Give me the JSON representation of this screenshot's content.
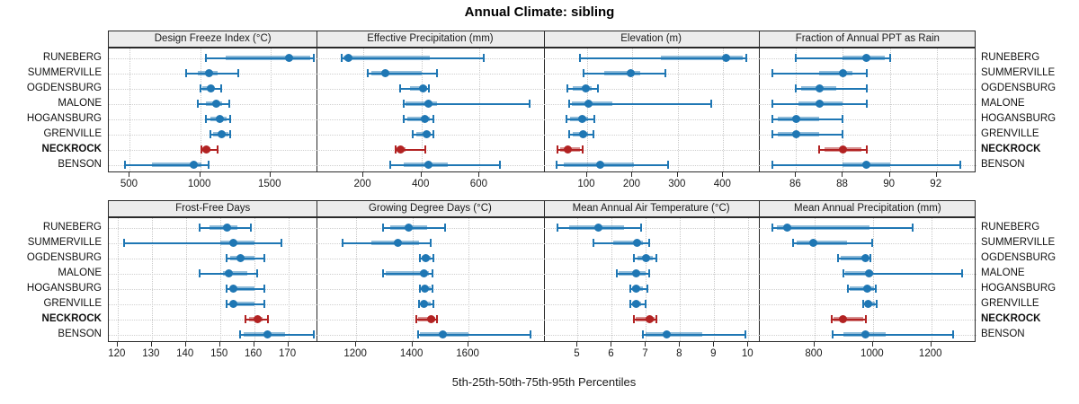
{
  "title": "Annual Climate: sibling",
  "xaxis_label": "5th-25th-50th-75th-95th Percentiles",
  "colors": {
    "series_blue": "#1f77b4",
    "highlight_red": "#b22222",
    "strip_bg": "#ececec",
    "gridline": "#c9c9c9",
    "border": "#2a2a2a"
  },
  "chart_data": {
    "type": "dotplot-trellis",
    "subtitle_percentiles": [
      "5th",
      "25th",
      "50th",
      "75th",
      "95th"
    ],
    "stations": [
      "RUNEBERG",
      "SUMMERVILLE",
      "OGDENSBURG",
      "MALONE",
      "HOGANSBURG",
      "GRENVILLE",
      "NECKROCK",
      "BENSON"
    ],
    "highlight_station": "NECKROCK",
    "legend_position": "none",
    "grid": "dotted",
    "panels": [
      {
        "title": "Design Freeze Index (°C)",
        "row": 0,
        "col": 0,
        "xlim": [
          350,
          1830
        ],
        "ticks": [
          500,
          1000,
          1500
        ],
        "values": {
          "RUNEBERG": [
            1040,
            1180,
            1630,
            1785,
            1808
          ],
          "SUMMERVILLE": [
            900,
            980,
            1062,
            1122,
            1270
          ],
          "OGDENSBURG": [
            1000,
            1016,
            1073,
            1092,
            1147
          ],
          "MALONE": [
            981,
            1041,
            1115,
            1157,
            1207
          ],
          "HOGANSBURG": [
            1041,
            1073,
            1143,
            1190,
            1211
          ],
          "GRENVILLE": [
            1073,
            1094,
            1154,
            1200,
            1215
          ],
          "NECKROCK": [
            1009,
            1016,
            1041,
            1073,
            1126
          ],
          "BENSON": [
            466,
            658,
            956,
            1009,
            1058
          ]
        }
      },
      {
        "title": "Effective Precipitation (mm)",
        "row": 0,
        "col": 1,
        "xlim": [
          40,
          820
        ],
        "ticks": [
          200,
          400,
          600
        ],
        "values": {
          "RUNEBERG": [
            124,
            132,
            150,
            428,
            615
          ],
          "SUMMERVILLE": [
            214,
            228,
            276,
            400,
            454
          ],
          "OGDENSBURG": [
            328,
            360,
            404,
            419,
            426
          ],
          "MALONE": [
            338,
            346,
            423,
            454,
            773
          ],
          "HOGANSBURG": [
            340,
            350,
            412,
            428,
            441
          ],
          "GRENVILLE": [
            371,
            381,
            418,
            433,
            441
          ],
          "NECKROCK": [
            311,
            315,
            328,
            345,
            412
          ],
          "BENSON": [
            292,
            340,
            425,
            490,
            670
          ]
        }
      },
      {
        "title": "Elevation (m)",
        "row": 0,
        "col": 2,
        "xlim": [
          4,
          478
        ],
        "ticks": [
          100,
          200,
          300,
          400
        ],
        "values": {
          "RUNEBERG": [
            85,
            263,
            407,
            443,
            451
          ],
          "SUMMERVILLE": [
            93,
            138,
            197,
            218,
            273
          ],
          "OGDENSBURG": [
            57,
            68,
            98,
            111,
            123
          ],
          "MALONE": [
            60,
            66,
            103,
            156,
            373
          ],
          "HOGANSBURG": [
            55,
            62,
            90,
            103,
            116
          ],
          "GRENVILLE": [
            60,
            68,
            91,
            103,
            114
          ],
          "NECKROCK": [
            35,
            40,
            57,
            85,
            91
          ],
          "BENSON": [
            32,
            48,
            128,
            204,
            278
          ]
        }
      },
      {
        "title": "Fraction of Annual PPT as Rain",
        "row": 0,
        "col": 3,
        "xlim": [
          84.4,
          93.7
        ],
        "ticks": [
          86,
          88,
          90,
          92
        ],
        "values": {
          "RUNEBERG": [
            86,
            88,
            89,
            89.8,
            90
          ],
          "SUMMERVILLE": [
            85,
            87,
            88,
            88.4,
            89
          ],
          "OGDENSBURG": [
            86,
            86.2,
            87,
            87.7,
            89
          ],
          "MALONE": [
            85,
            86.1,
            87,
            88,
            89
          ],
          "HOGANSBURG": [
            85,
            85.2,
            86,
            87,
            88
          ],
          "GRENVILLE": [
            85,
            85.2,
            86,
            87,
            88
          ],
          "NECKROCK": [
            87,
            87.2,
            88,
            88.8,
            89
          ],
          "BENSON": [
            85,
            88,
            89,
            90,
            93
          ]
        }
      },
      {
        "title": "Frost-Free Days",
        "row": 1,
        "col": 0,
        "xlim": [
          117.4,
          178.4
        ],
        "ticks": [
          120,
          130,
          140,
          150,
          160,
          170
        ],
        "values": {
          "RUNEBERG": [
            144,
            147,
            152,
            155,
            159
          ],
          "SUMMERVILLE": [
            122,
            150,
            154,
            160,
            168
          ],
          "OGDENSBURG": [
            152,
            153,
            156,
            160,
            163
          ],
          "MALONE": [
            144,
            151,
            152.5,
            158,
            161
          ],
          "HOGANSBURG": [
            152,
            153,
            154,
            160,
            163
          ],
          "GRENVILLE": [
            152,
            153,
            154,
            160,
            163
          ],
          "NECKROCK": [
            157.5,
            158.5,
            161,
            162.5,
            164
          ],
          "BENSON": [
            156,
            157,
            164,
            169,
            177.5
          ]
        }
      },
      {
        "title": "Growing Degree Days (°C)",
        "row": 1,
        "col": 1,
        "xlim": [
          1060,
          1867
        ],
        "ticks": [
          1200,
          1400,
          1600
        ],
        "values": {
          "RUNEBERG": [
            1295,
            1320,
            1388,
            1452,
            1516
          ],
          "SUMMERVILLE": [
            1150,
            1255,
            1348,
            1425,
            1466
          ],
          "OGDENSBURG": [
            1427,
            1434,
            1449,
            1465,
            1474
          ],
          "MALONE": [
            1297,
            1306,
            1441,
            1460,
            1471
          ],
          "HOGANSBURG": [
            1428,
            1434,
            1445,
            1465,
            1471
          ],
          "GRENVILLE": [
            1425,
            1432,
            1441,
            1466,
            1474
          ],
          "NECKROCK": [
            1414,
            1421,
            1466,
            1480,
            1487
          ],
          "BENSON": [
            1420,
            1428,
            1508,
            1600,
            1820
          ]
        }
      },
      {
        "title": "Mean Annual Air Temperature (°C)",
        "row": 1,
        "col": 2,
        "xlim": [
          4.0,
          10.3
        ],
        "ticks": [
          5,
          6,
          7,
          8,
          9,
          10
        ],
        "values": {
          "RUNEBERG": [
            4.4,
            4.75,
            5.6,
            6.35,
            6.85
          ],
          "SUMMERVILLE": [
            5.45,
            6.05,
            6.75,
            6.9,
            7.1
          ],
          "OGDENSBURG": [
            6.65,
            6.75,
            7.0,
            7.2,
            7.3
          ],
          "MALONE": [
            6.15,
            6.2,
            6.7,
            7.0,
            7.1
          ],
          "HOGANSBURG": [
            6.55,
            6.6,
            6.7,
            6.9,
            7.05
          ],
          "GRENVILLE": [
            6.55,
            6.6,
            6.7,
            6.85,
            7.0
          ],
          "NECKROCK": [
            6.65,
            6.7,
            7.1,
            7.25,
            7.3
          ],
          "BENSON": [
            6.9,
            7.0,
            7.6,
            8.65,
            9.9
          ]
        }
      },
      {
        "title": "Mean Annual Precipitation (mm)",
        "row": 1,
        "col": 3,
        "xlim": [
          608,
          1355
        ],
        "ticks": [
          800,
          1000,
          1200
        ],
        "values": {
          "RUNEBERG": [
            655,
            670,
            707,
            987,
            1135
          ],
          "SUMMERVILLE": [
            725,
            737,
            797,
            910,
            997
          ],
          "OGDENSBURG": [
            881,
            888,
            974,
            985,
            991
          ],
          "MALONE": [
            900,
            906,
            987,
            999,
            1306
          ],
          "HOGANSBURG": [
            915,
            921,
            982,
            1003,
            1011
          ],
          "GRENVILLE": [
            967,
            972,
            984,
            1006,
            1013
          ],
          "NECKROCK": [
            859,
            866,
            897,
            968,
            977
          ],
          "BENSON": [
            862,
            900,
            974,
            1044,
            1275
          ]
        }
      }
    ]
  }
}
